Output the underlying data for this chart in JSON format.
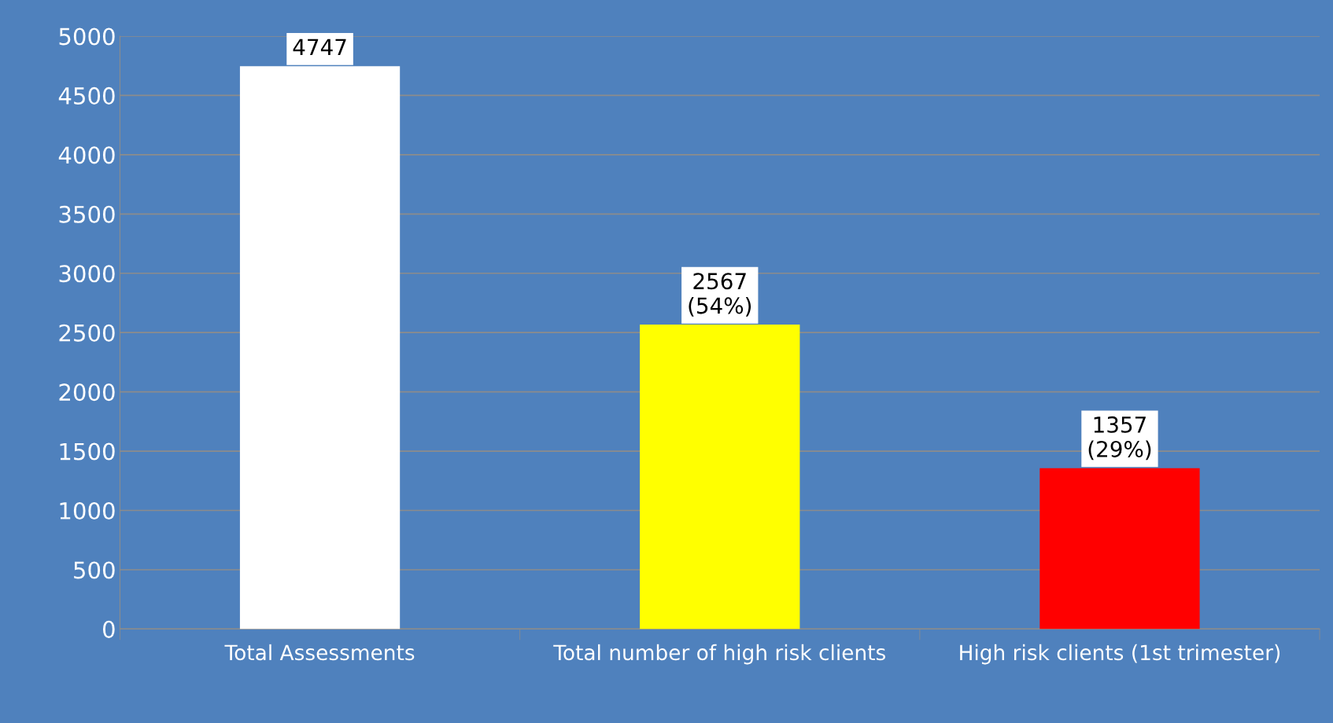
{
  "chart_data": {
    "type": "bar",
    "categories": [
      "Total Assessments",
      "Total number of high risk clients",
      "High risk clients (1st trimester)"
    ],
    "values": [
      4747,
      2567,
      1357
    ],
    "colors": [
      "#ffffff",
      "#ffff00",
      "#ff0000"
    ],
    "value_labels": [
      "4747",
      "2567\n(54%)",
      "1357\n(29%)"
    ],
    "ylim": [
      0,
      5000
    ],
    "yticks": [
      0,
      500,
      1000,
      1500,
      2000,
      2500,
      3000,
      3500,
      4000,
      4500,
      5000
    ],
    "grid": "y",
    "legend": false
  }
}
